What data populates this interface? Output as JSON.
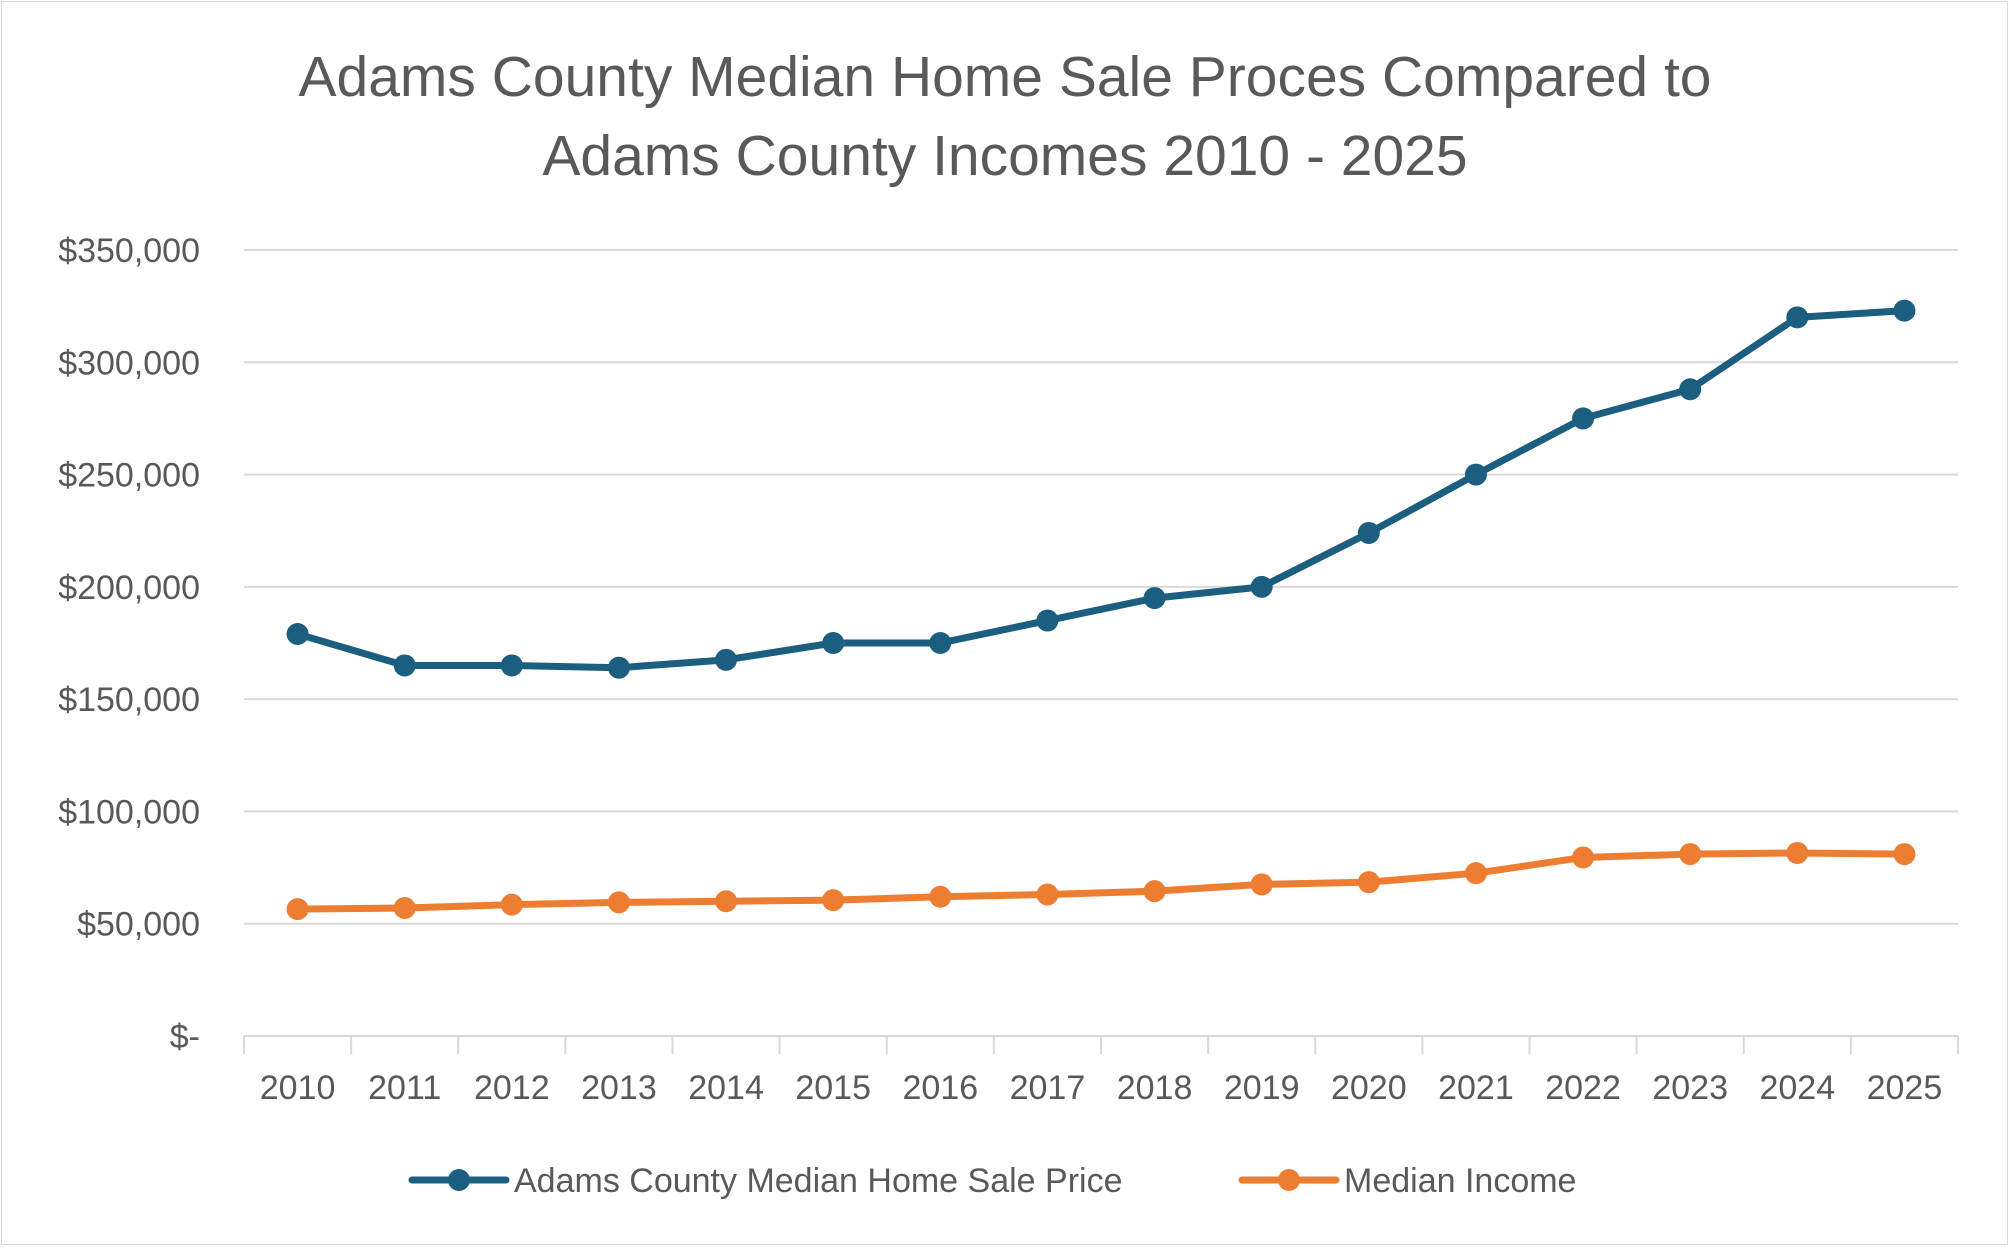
{
  "chart_data": {
    "type": "line",
    "title_lines": [
      "Adams County Median Home Sale Proces Compared to",
      "Adams County Incomes 2010 - 2025"
    ],
    "categories": [
      "2010",
      "2011",
      "2012",
      "2013",
      "2014",
      "2015",
      "2016",
      "2017",
      "2018",
      "2019",
      "2020",
      "2021",
      "2022",
      "2023",
      "2024",
      "2025"
    ],
    "y_ticks": [
      {
        "value": 0,
        "label": "$-"
      },
      {
        "value": 50000,
        "label": "$50,000"
      },
      {
        "value": 100000,
        "label": "$100,000"
      },
      {
        "value": 150000,
        "label": "$150,000"
      },
      {
        "value": 200000,
        "label": "$200,000"
      },
      {
        "value": 250000,
        "label": "$250,000"
      },
      {
        "value": 300000,
        "label": "$300,000"
      },
      {
        "value": 350000,
        "label": "$350,000"
      }
    ],
    "ylim": [
      0,
      350000
    ],
    "grid": true,
    "legend_position": "bottom",
    "series": [
      {
        "name": "Adams County Median Home Sale Price",
        "color": "#1b5e80",
        "values": [
          179000,
          165000,
          165000,
          164000,
          167500,
          175000,
          175000,
          185000,
          195000,
          200000,
          224000,
          250000,
          275000,
          288000,
          320000,
          323000
        ]
      },
      {
        "name": "Median Income",
        "color": "#ed7d31",
        "values": [
          56500,
          57000,
          58500,
          59500,
          60000,
          60500,
          62000,
          63000,
          64500,
          67500,
          68500,
          72500,
          79500,
          81000,
          81500,
          81000
        ]
      }
    ]
  }
}
